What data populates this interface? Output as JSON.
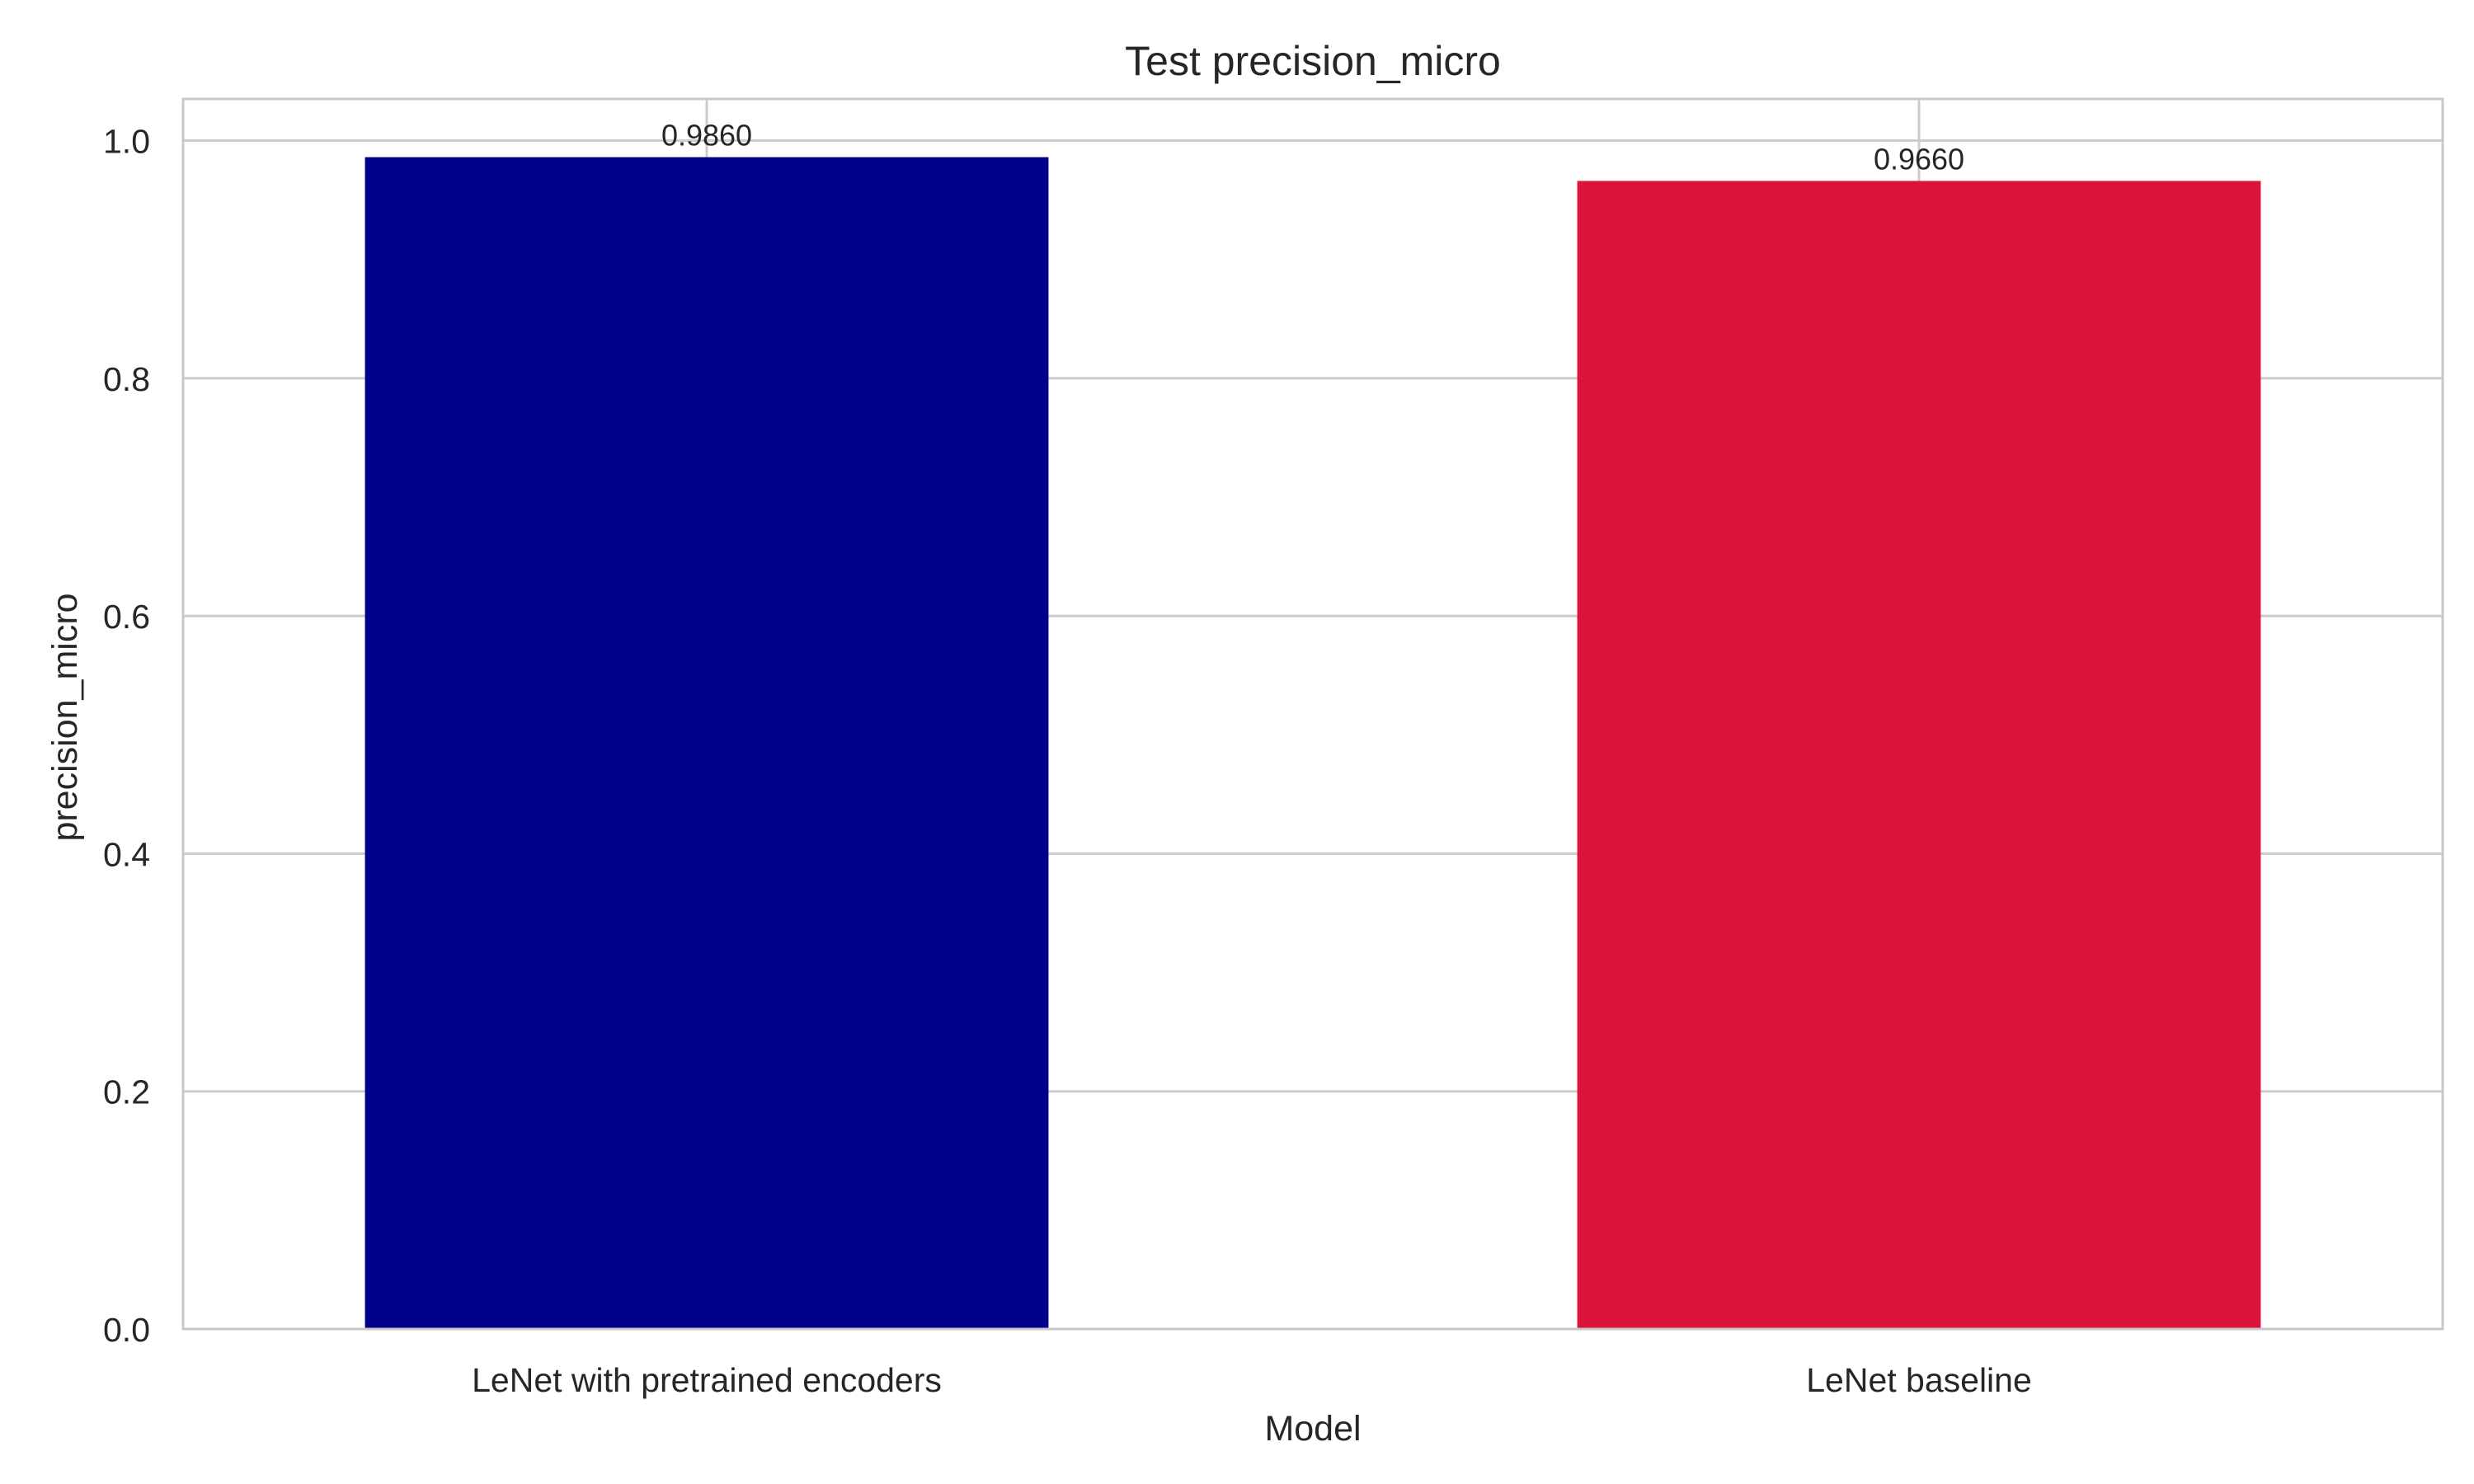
{
  "chart_data": {
    "type": "bar",
    "title": "Test precision_micro",
    "xlabel": "Model",
    "ylabel": "precision_micro",
    "categories": [
      "LeNet with pretrained encoders",
      "LeNet baseline"
    ],
    "values": [
      0.986,
      0.966
    ],
    "value_labels": [
      "0.9860",
      "0.9660"
    ],
    "colors": [
      "#00008b",
      "#dc143c"
    ],
    "ylim": [
      0,
      1.035
    ],
    "yticks": [
      0.0,
      0.2,
      0.4,
      0.6,
      0.8,
      1.0
    ],
    "ytick_labels": [
      "0.0",
      "0.2",
      "0.4",
      "0.6",
      "0.8",
      "1.0"
    ],
    "grid": true
  }
}
